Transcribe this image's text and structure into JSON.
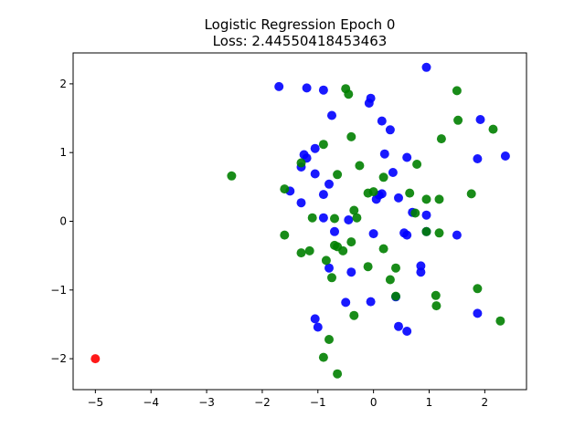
{
  "chart_data": {
    "type": "scatter",
    "title": "Logistic Regression Epoch 0",
    "subtitle": "Loss: 2.44550418453463",
    "xlim": [
      -5.4,
      2.75
    ],
    "ylim": [
      -2.45,
      2.45
    ],
    "xticks": [
      -5,
      -4,
      -3,
      -2,
      -1,
      0,
      1,
      2
    ],
    "yticks": [
      -2,
      -1,
      0,
      1,
      2
    ],
    "grid": false,
    "legend": "none",
    "series": [
      {
        "color": "#0000ff",
        "points": [
          [
            0.95,
            2.24
          ],
          [
            -1.7,
            1.96
          ],
          [
            -1.2,
            1.94
          ],
          [
            -0.9,
            1.91
          ],
          [
            -0.05,
            1.79
          ],
          [
            -0.08,
            1.72
          ],
          [
            -0.75,
            1.54
          ],
          [
            0.15,
            1.46
          ],
          [
            0.3,
            1.33
          ],
          [
            1.92,
            1.48
          ],
          [
            -1.05,
            1.06
          ],
          [
            -1.25,
            0.97
          ],
          [
            -1.2,
            0.92
          ],
          [
            0.2,
            0.98
          ],
          [
            0.6,
            0.93
          ],
          [
            1.87,
            0.91
          ],
          [
            2.37,
            0.95
          ],
          [
            -1.3,
            0.79
          ],
          [
            -1.05,
            0.69
          ],
          [
            0.35,
            0.71
          ],
          [
            -0.8,
            0.54
          ],
          [
            -1.5,
            0.44
          ],
          [
            -0.9,
            0.39
          ],
          [
            0.15,
            0.4
          ],
          [
            0.1,
            0.38
          ],
          [
            0.05,
            0.32
          ],
          [
            0.45,
            0.34
          ],
          [
            -1.3,
            0.27
          ],
          [
            0.7,
            0.13
          ],
          [
            0.95,
            0.09
          ],
          [
            -0.9,
            0.05
          ],
          [
            -0.45,
            0.02
          ],
          [
            -0.7,
            -0.15
          ],
          [
            0.0,
            -0.18
          ],
          [
            0.55,
            -0.17
          ],
          [
            0.6,
            -0.2
          ],
          [
            1.5,
            -0.2
          ],
          [
            0.95,
            -0.15
          ],
          [
            -0.8,
            -0.68
          ],
          [
            -0.4,
            -0.74
          ],
          [
            0.85,
            -0.65
          ],
          [
            0.85,
            -0.74
          ],
          [
            0.4,
            -1.1
          ],
          [
            -0.5,
            -1.18
          ],
          [
            -0.05,
            -1.17
          ],
          [
            -1.05,
            -1.42
          ],
          [
            -1.0,
            -1.54
          ],
          [
            0.45,
            -1.53
          ],
          [
            0.6,
            -1.6
          ],
          [
            1.87,
            -1.34
          ]
        ]
      },
      {
        "color": "#008000",
        "points": [
          [
            -0.5,
            1.93
          ],
          [
            -0.45,
            1.85
          ],
          [
            1.5,
            1.9
          ],
          [
            1.52,
            1.47
          ],
          [
            2.15,
            1.34
          ],
          [
            -0.4,
            1.23
          ],
          [
            1.22,
            1.2
          ],
          [
            -0.9,
            1.12
          ],
          [
            -1.3,
            0.85
          ],
          [
            -0.25,
            0.81
          ],
          [
            0.78,
            0.83
          ],
          [
            -0.65,
            0.68
          ],
          [
            -2.55,
            0.66
          ],
          [
            0.18,
            0.64
          ],
          [
            -1.6,
            0.47
          ],
          [
            -0.1,
            0.41
          ],
          [
            0.0,
            0.43
          ],
          [
            0.65,
            0.41
          ],
          [
            0.95,
            0.32
          ],
          [
            1.18,
            0.32
          ],
          [
            1.76,
            0.4
          ],
          [
            -0.35,
            0.16
          ],
          [
            0.75,
            0.12
          ],
          [
            -1.1,
            0.05
          ],
          [
            -0.7,
            0.04
          ],
          [
            -0.3,
            0.05
          ],
          [
            -1.6,
            -0.2
          ],
          [
            0.95,
            -0.15
          ],
          [
            1.18,
            -0.17
          ],
          [
            -0.4,
            -0.3
          ],
          [
            -0.7,
            -0.35
          ],
          [
            -0.65,
            -0.37
          ],
          [
            -0.55,
            -0.43
          ],
          [
            -1.3,
            -0.46
          ],
          [
            -1.15,
            -0.43
          ],
          [
            0.18,
            -0.4
          ],
          [
            -0.85,
            -0.57
          ],
          [
            -0.1,
            -0.66
          ],
          [
            0.4,
            -0.68
          ],
          [
            -0.75,
            -0.82
          ],
          [
            0.3,
            -0.85
          ],
          [
            1.87,
            -0.98
          ],
          [
            0.4,
            -1.09
          ],
          [
            1.12,
            -1.08
          ],
          [
            1.13,
            -1.23
          ],
          [
            -0.35,
            -1.37
          ],
          [
            -0.8,
            -1.72
          ],
          [
            2.28,
            -1.45
          ],
          [
            -0.9,
            -1.98
          ],
          [
            -0.65,
            -2.22
          ]
        ]
      },
      {
        "color": "#ff0000",
        "points": [
          [
            -5.0,
            -2.0
          ]
        ]
      }
    ]
  }
}
